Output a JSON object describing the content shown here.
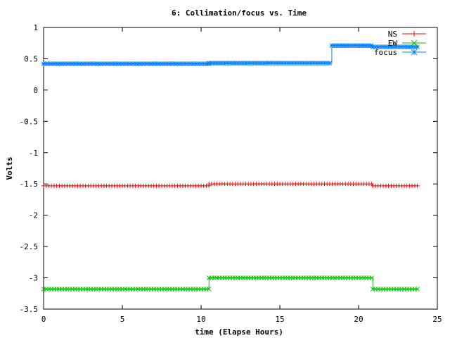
{
  "chart_data": {
    "type": "line",
    "title": "6: Collimation/focus vs. Time",
    "xlabel": "time (Elapse Hours)",
    "ylabel": "Volts",
    "xlim": [
      0,
      25
    ],
    "ylim": [
      -3.5,
      1
    ],
    "xticks": [
      "0",
      "5",
      "10",
      "15",
      "20",
      "25"
    ],
    "yticks": [
      "1",
      "0.5",
      "0",
      "-0.5",
      "-1",
      "-1.5",
      "-2",
      "-2.5",
      "-3",
      "-3.5"
    ],
    "legend_placement": "top-right",
    "grid": false,
    "series": [
      {
        "name": "NS",
        "color": "#ff0000",
        "marker": "plus",
        "segments": [
          {
            "x": [
              0,
              10.5
            ],
            "y": [
              -1.53,
              -1.53
            ]
          },
          {
            "x": [
              10.5,
              20.9
            ],
            "y": [
              -1.5,
              -1.5
            ]
          },
          {
            "x": [
              20.9,
              23.8
            ],
            "y": [
              -1.53,
              -1.53
            ]
          }
        ]
      },
      {
        "name": "EW",
        "color": "#00c000",
        "marker": "x",
        "segments": [
          {
            "x": [
              0,
              10.5
            ],
            "y": [
              -3.18,
              -3.18
            ]
          },
          {
            "x": [
              10.5,
              20.9
            ],
            "y": [
              -3.0,
              -3.0
            ]
          },
          {
            "x": [
              20.9,
              23.8
            ],
            "y": [
              -3.18,
              -3.18
            ]
          }
        ]
      },
      {
        "name": "focus",
        "color": "#0080ff",
        "marker": "star",
        "segments": [
          {
            "x": [
              0,
              10.5
            ],
            "y": [
              0.42,
              0.42
            ]
          },
          {
            "x": [
              10.5,
              18.3
            ],
            "y": [
              0.43,
              0.43
            ]
          },
          {
            "x": [
              18.3,
              20.9
            ],
            "y": [
              0.71,
              0.71
            ]
          },
          {
            "x": [
              20.9,
              23.8
            ],
            "y": [
              0.69,
              0.69
            ]
          }
        ]
      }
    ]
  }
}
